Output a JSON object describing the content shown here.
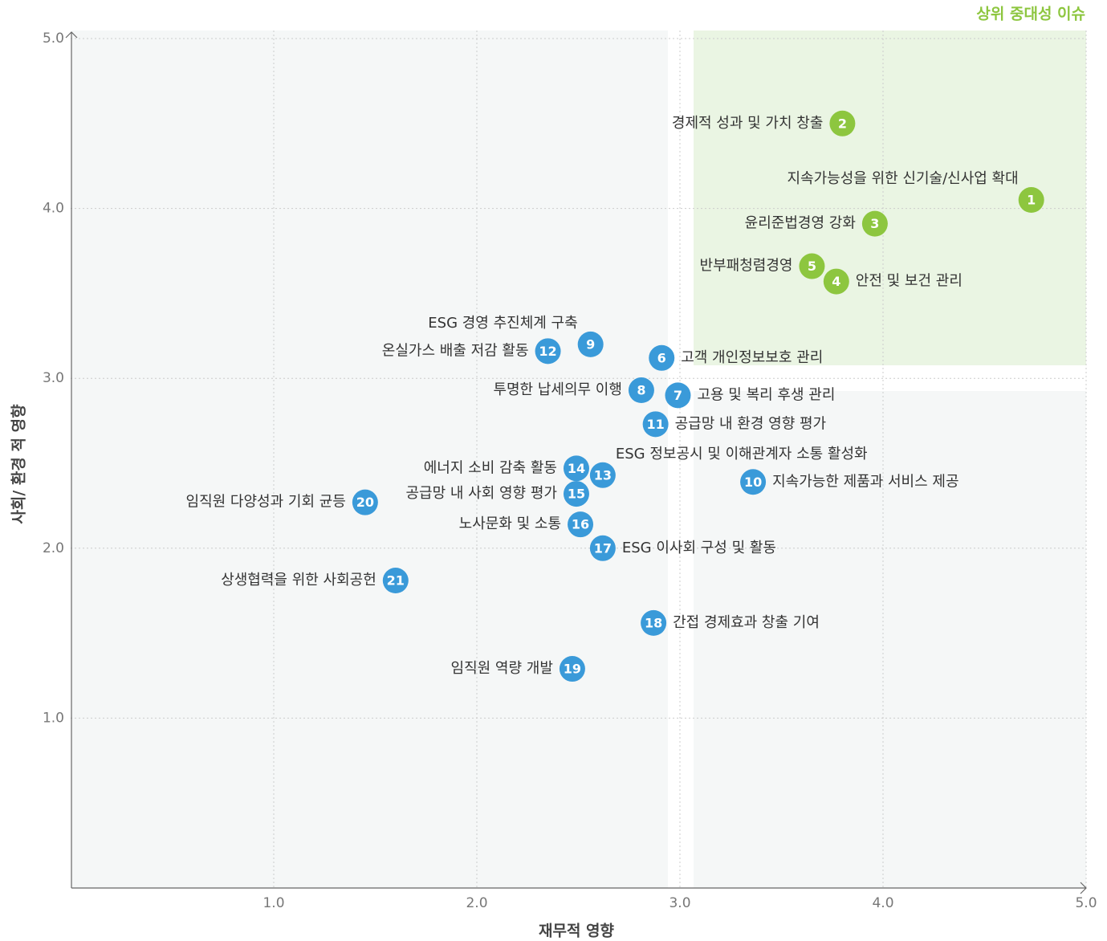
{
  "chart_data": {
    "type": "scatter",
    "title": "상위 중대성 이슈",
    "title_color": "#8dc63f",
    "x_label": "재무적 영향",
    "y_label": "사회/ 환경 적 영향",
    "xlim": [
      0,
      5
    ],
    "ylim": [
      0,
      5
    ],
    "xticks": [
      {
        "value": 1,
        "label": "1.0"
      },
      {
        "value": 2,
        "label": "2.0"
      },
      {
        "value": 3,
        "label": "3.0"
      },
      {
        "value": 4,
        "label": "4.0"
      },
      {
        "value": 5,
        "label": "5.0"
      }
    ],
    "yticks": [
      {
        "value": 1,
        "label": "1.0"
      },
      {
        "value": 2,
        "label": "2.0"
      },
      {
        "value": 3,
        "label": "3.0"
      },
      {
        "value": 4,
        "label": "4.0"
      },
      {
        "value": 5,
        "label": "5.0"
      }
    ],
    "grid": true,
    "series": [
      {
        "color": "#8dc63f",
        "points": [
          {
            "id": "1",
            "label": "지속가능성을 위한 신기술/신사업 확대",
            "x": 4.73,
            "y": 4.05
          },
          {
            "id": "2",
            "label": "경제적 성과 및 가치 창출",
            "x": 3.8,
            "y": 4.5
          },
          {
            "id": "3",
            "label": "윤리준법경영 강화",
            "x": 3.96,
            "y": 3.91
          },
          {
            "id": "4",
            "label": "안전 및 보건 관리",
            "x": 3.77,
            "y": 3.57
          },
          {
            "id": "5",
            "label": "반부패청렴경영",
            "x": 3.65,
            "y": 3.66
          }
        ]
      },
      {
        "color": "#3a9ad9",
        "points": [
          {
            "id": "6",
            "label": "고객 개인정보보호 관리",
            "x": 2.91,
            "y": 3.12
          },
          {
            "id": "7",
            "label": "고용 및 복리 후생 관리",
            "x": 2.99,
            "y": 2.9
          },
          {
            "id": "8",
            "label": "투명한 납세의무 이행",
            "x": 2.81,
            "y": 2.93
          },
          {
            "id": "9",
            "label": "ESG 경영 추진체계 구축",
            "x": 2.56,
            "y": 3.2
          },
          {
            "id": "10",
            "label": "지속가능한 제품과 서비스 제공",
            "x": 3.36,
            "y": 2.39
          },
          {
            "id": "11",
            "label": "공급망 내 환경 영향 평가",
            "x": 2.88,
            "y": 2.73
          },
          {
            "id": "12",
            "label": "온실가스 배출 저감 활동",
            "x": 2.35,
            "y": 3.16
          },
          {
            "id": "13",
            "label": "ESG 정보공시 및 이해관계자 소통 활성화",
            "x": 2.62,
            "y": 2.43
          },
          {
            "id": "14",
            "label": "에너지 소비 감축 활동",
            "x": 2.49,
            "y": 2.47
          },
          {
            "id": "15",
            "label": "공급망 내 사회 영향 평가",
            "x": 2.49,
            "y": 2.32
          },
          {
            "id": "16",
            "label": "노사문화 및 소통",
            "x": 2.51,
            "y": 2.14
          },
          {
            "id": "17",
            "label": "ESG 이사회 구성 및 활동",
            "x": 2.62,
            "y": 2.0
          },
          {
            "id": "18",
            "label": "간접 경제효과 창출 기여",
            "x": 2.87,
            "y": 1.56
          },
          {
            "id": "19",
            "label": "임직원 역량 개발",
            "x": 2.47,
            "y": 1.29
          },
          {
            "id": "20",
            "label": "임직원 다양성과 기회 균등",
            "x": 1.45,
            "y": 2.27
          },
          {
            "id": "21",
            "label": "상생협력을 위한 사회공헌",
            "x": 1.6,
            "y": 1.81
          }
        ]
      }
    ]
  }
}
